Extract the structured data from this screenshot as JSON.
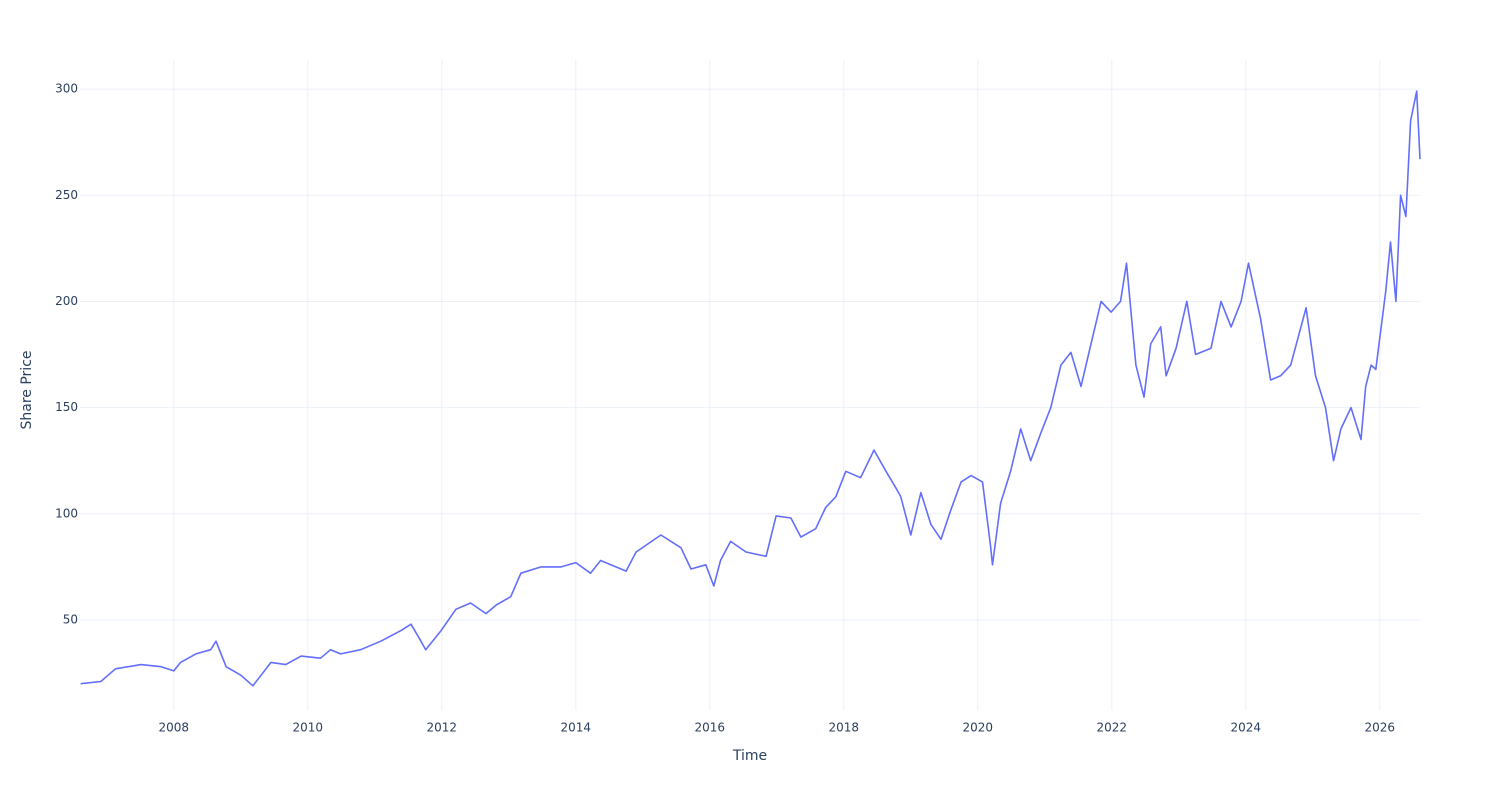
{
  "chart_data": {
    "type": "line",
    "x_label": "Time",
    "y_label": "Share Price",
    "xlim": [
      2006.6,
      2026.6
    ],
    "xticks": [
      2008,
      2010,
      2012,
      2014,
      2016,
      2018,
      2020,
      2022,
      2024,
      2026
    ],
    "ylim": [
      7.6,
      313.7
    ],
    "yticks": [
      50,
      100,
      150,
      200,
      250,
      300
    ],
    "grid": true,
    "series": [
      {
        "name": "Share Price",
        "color": "#636efa",
        "x": [
          2006.61,
          2006.91,
          2007.13,
          2007.51,
          2007.81,
          2008.0,
          2008.1,
          2008.33,
          2008.55,
          2008.63,
          2008.78,
          2009.0,
          2009.18,
          2009.45,
          2009.67,
          2009.9,
          2010.19,
          2010.34,
          2010.49,
          2010.79,
          2011.09,
          2011.39,
          2011.54,
          2011.69,
          2011.76,
          2011.99,
          2012.21,
          2012.43,
          2012.66,
          2012.81,
          2013.03,
          2013.18,
          2013.48,
          2013.78,
          2014.0,
          2014.22,
          2014.37,
          2014.75,
          2014.9,
          2015.27,
          2015.57,
          2015.72,
          2015.94,
          2016.06,
          2016.16,
          2016.31,
          2016.54,
          2016.84,
          2016.99,
          2017.21,
          2017.36,
          2017.58,
          2017.73,
          2017.88,
          2018.03,
          2018.25,
          2018.45,
          2018.63,
          2018.78,
          2018.85,
          2019.0,
          2019.15,
          2019.3,
          2019.45,
          2019.6,
          2019.75,
          2019.9,
          2020.07,
          2020.19,
          2020.22,
          2020.34,
          2020.49,
          2020.64,
          2020.79,
          2020.94,
          2021.09,
          2021.24,
          2021.39,
          2021.54,
          2021.69,
          2021.84,
          2021.99,
          2022.13,
          2022.22,
          2022.36,
          2022.48,
          2022.58,
          2022.73,
          2022.81,
          2022.96,
          2023.12,
          2023.25,
          2023.48,
          2023.63,
          2023.78,
          2023.93,
          2024.04,
          2024.22,
          2024.37,
          2024.52,
          2024.67,
          2024.9,
          2025.04,
          2025.19,
          2025.31,
          2025.42,
          2025.57,
          2025.72,
          2025.79,
          2025.87,
          2025.94,
          2026.09,
          2026.16,
          2026.24,
          2026.31,
          2026.39,
          2026.46,
          2026.55,
          2026.6
        ],
        "values": [
          20,
          21,
          27,
          29,
          28,
          26,
          30,
          34,
          36,
          40,
          28,
          24,
          19,
          30,
          29,
          33,
          32,
          36,
          34,
          36,
          40,
          45,
          48,
          40,
          36,
          45,
          55,
          58,
          53,
          57,
          61,
          72,
          75,
          75,
          77,
          72,
          78,
          73,
          82,
          90,
          84,
          74,
          76,
          66,
          78,
          87,
          82,
          80,
          99,
          98,
          89,
          93,
          103,
          108,
          120,
          117,
          130,
          120,
          112,
          108,
          90,
          110,
          95,
          88,
          102,
          115,
          118,
          115,
          85,
          76,
          105,
          120,
          140,
          125,
          138,
          150,
          170,
          176,
          160,
          180,
          200,
          195,
          200,
          218,
          170,
          155,
          180,
          188,
          165,
          178,
          200,
          175,
          178,
          200,
          188,
          200,
          218,
          192,
          163,
          165,
          170,
          197,
          165,
          150,
          125,
          140,
          150,
          135,
          160,
          170,
          168,
          205,
          228,
          200,
          250,
          240,
          285,
          299,
          267
        ]
      }
    ]
  }
}
